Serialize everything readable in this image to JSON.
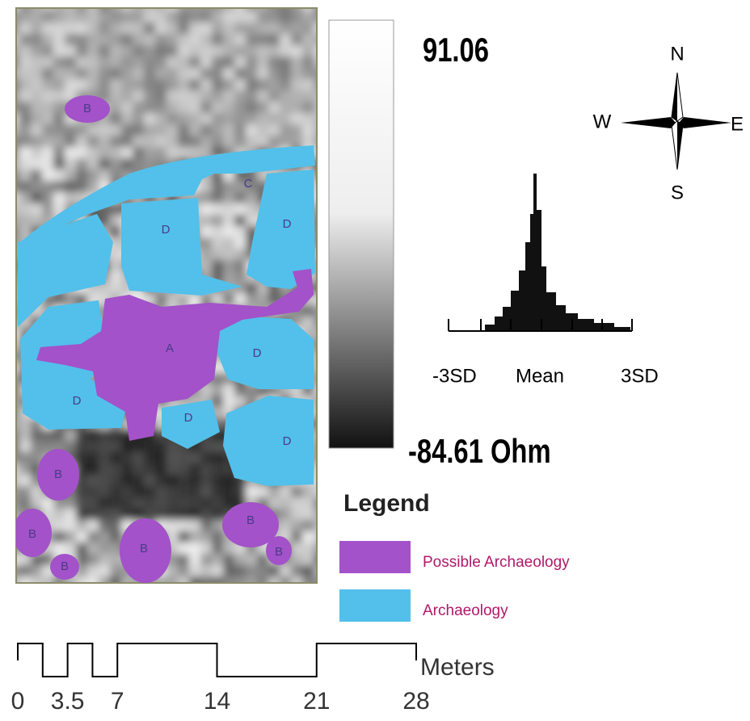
{
  "map": {
    "labels": [
      "B",
      "C",
      "D",
      "D",
      "A",
      "D",
      "D",
      "D",
      "D",
      "B",
      "B",
      "B",
      "B",
      "B",
      "B"
    ]
  },
  "colorbar": {
    "max": 91.06,
    "min_label": "-84.61 Ohm"
  },
  "compass": {
    "north": "N",
    "south": "S",
    "east": "E",
    "west": "W"
  },
  "histogram": {
    "left": "-3SD",
    "center": "Mean",
    "right": "3SD"
  },
  "legend": {
    "title": "Legend",
    "items": [
      {
        "name": "Possible Archaeology",
        "color": "#a352c9"
      },
      {
        "name": "Archaeology",
        "color": "#52c0ea"
      }
    ]
  },
  "scale": {
    "ticks": [
      0,
      3.5,
      7,
      14,
      21,
      28
    ],
    "unit": "Meters"
  }
}
